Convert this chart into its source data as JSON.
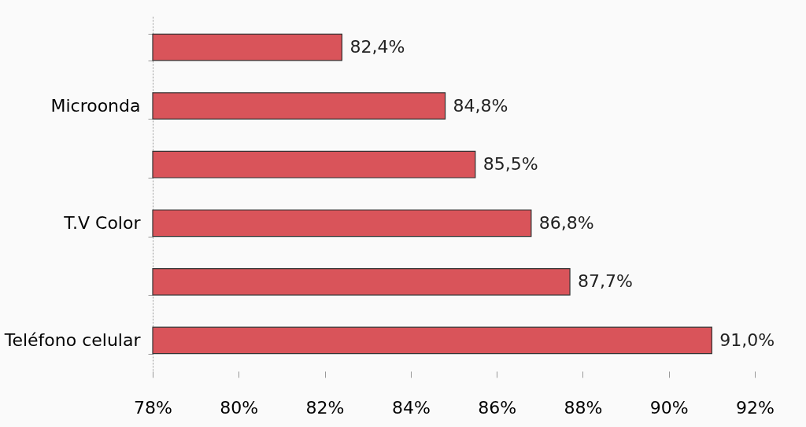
{
  "chart_data": {
    "type": "bar",
    "orientation": "horizontal",
    "categories": [
      null,
      "Microonda",
      null,
      "T.V Color",
      null,
      "Teléfono celular"
    ],
    "values": [
      82.4,
      84.8,
      85.5,
      86.8,
      87.7,
      91.0
    ],
    "value_labels": [
      "82,4%",
      "84,8%",
      "85,5%",
      "86,8%",
      "87,7%",
      "91,0%"
    ],
    "color": "#d9545a",
    "xlim": [
      78,
      92
    ],
    "xticks": [
      {
        "value": 78,
        "label": "78%"
      },
      {
        "value": 80,
        "label": "80%"
      },
      {
        "value": 82,
        "label": "82%"
      },
      {
        "value": 84,
        "label": "84%"
      },
      {
        "value": 86,
        "label": "86%"
      },
      {
        "value": 88,
        "label": "88%"
      },
      {
        "value": 90,
        "label": "90%"
      },
      {
        "value": 92,
        "label": "92%"
      }
    ],
    "grid": false
  }
}
